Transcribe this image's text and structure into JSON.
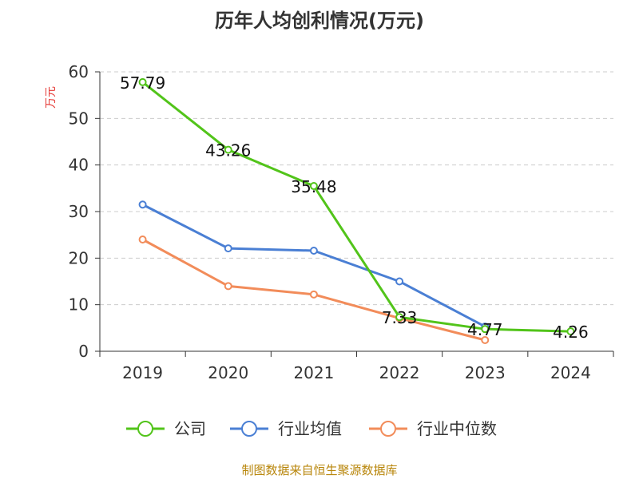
{
  "chart_data": {
    "type": "line",
    "title": "历年人均创利情况(万元)",
    "ylabel": "万元",
    "xlabel": "",
    "categories": [
      "2019",
      "2020",
      "2021",
      "2022",
      "2023",
      "2024"
    ],
    "ylim": [
      0,
      60
    ],
    "yticks": [
      0,
      10,
      20,
      30,
      40,
      50,
      60
    ],
    "grid": "horizontal-dashed",
    "legend_position": "bottom",
    "series": [
      {
        "name": "公司",
        "color": "#52c41a",
        "values": [
          57.79,
          43.26,
          35.48,
          7.33,
          4.77,
          4.26
        ],
        "labels": [
          "57.79",
          "43.26",
          "35.48",
          "7.33",
          "4.77",
          "4.26"
        ]
      },
      {
        "name": "行业均值",
        "color": "#4a7fd4",
        "values": [
          31.5,
          22.1,
          21.6,
          15.0,
          5.3,
          null
        ]
      },
      {
        "name": "行业中位数",
        "color": "#f28c5a",
        "values": [
          24.0,
          14.0,
          12.2,
          7.1,
          2.4,
          null
        ]
      }
    ]
  },
  "footer": {
    "source": "制图数据来自恒生聚源数据库"
  }
}
